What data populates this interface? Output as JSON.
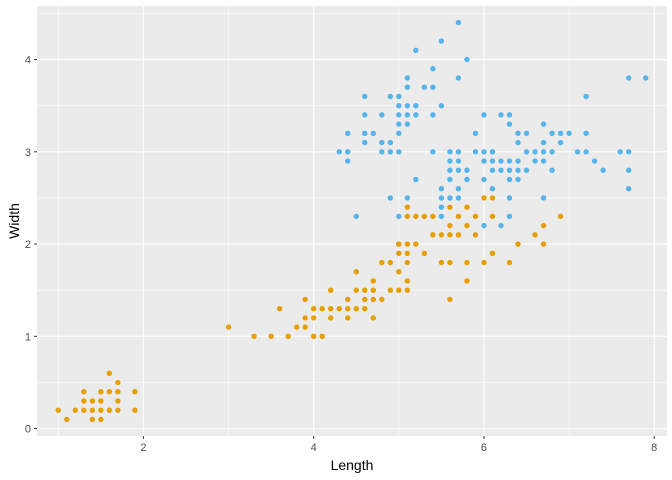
{
  "chart_data": {
    "type": "scatter",
    "xlabel": "Length",
    "ylabel": "Width",
    "xlim": [
      0.75,
      8.15
    ],
    "ylim": [
      -0.08,
      4.58
    ],
    "x_ticks": [
      2,
      4,
      6,
      8
    ],
    "y_ticks": [
      0,
      1,
      2,
      3,
      4
    ],
    "x_tick_labels": [
      "2",
      "4",
      "6",
      "8"
    ],
    "y_tick_labels": [
      "0",
      "1",
      "2",
      "3",
      "4"
    ],
    "grid": true,
    "legend": "none",
    "colors": {
      "panel": "#EBEBEB",
      "grid": "#FFFFFF",
      "blue": "#56B4E9",
      "orange": "#E69F00"
    },
    "series": [
      {
        "color": "#56B4E9",
        "points": [
          [
            4.4,
            3.0
          ],
          [
            4.4,
            2.9
          ],
          [
            4.4,
            3.2
          ],
          [
            4.3,
            3.0
          ],
          [
            4.5,
            2.3
          ],
          [
            4.6,
            3.1
          ],
          [
            4.6,
            3.4
          ],
          [
            4.6,
            3.6
          ],
          [
            4.6,
            3.2
          ],
          [
            4.7,
            3.2
          ],
          [
            4.8,
            3.4
          ],
          [
            4.8,
            3.0
          ],
          [
            4.8,
            3.1
          ],
          [
            4.9,
            3.0
          ],
          [
            4.9,
            3.1
          ],
          [
            4.9,
            3.6
          ],
          [
            4.9,
            2.5
          ],
          [
            5.0,
            3.6
          ],
          [
            5.0,
            3.4
          ],
          [
            5.0,
            3.0
          ],
          [
            5.0,
            3.3
          ],
          [
            5.0,
            3.2
          ],
          [
            5.0,
            3.5
          ],
          [
            5.0,
            2.0
          ],
          [
            5.0,
            2.3
          ],
          [
            5.1,
            3.5
          ],
          [
            5.1,
            3.8
          ],
          [
            5.1,
            3.7
          ],
          [
            5.1,
            3.3
          ],
          [
            5.1,
            3.4
          ],
          [
            5.1,
            2.5
          ],
          [
            5.2,
            3.5
          ],
          [
            5.2,
            3.4
          ],
          [
            5.2,
            4.1
          ],
          [
            5.2,
            2.7
          ],
          [
            5.3,
            3.7
          ],
          [
            5.4,
            3.9
          ],
          [
            5.4,
            3.7
          ],
          [
            5.4,
            3.4
          ],
          [
            5.4,
            3.0
          ],
          [
            5.5,
            4.2
          ],
          [
            5.5,
            3.5
          ],
          [
            5.5,
            2.3
          ],
          [
            5.5,
            2.4
          ],
          [
            5.5,
            2.5
          ],
          [
            5.5,
            2.6
          ],
          [
            5.6,
            3.0
          ],
          [
            5.6,
            2.9
          ],
          [
            5.6,
            2.5
          ],
          [
            5.6,
            2.7
          ],
          [
            5.6,
            2.8
          ],
          [
            5.7,
            4.4
          ],
          [
            5.7,
            3.8
          ],
          [
            5.7,
            2.8
          ],
          [
            5.7,
            2.6
          ],
          [
            5.7,
            3.0
          ],
          [
            5.7,
            2.9
          ],
          [
            5.7,
            2.5
          ],
          [
            5.8,
            4.0
          ],
          [
            5.8,
            2.7
          ],
          [
            5.8,
            2.8
          ],
          [
            5.9,
            3.0
          ],
          [
            5.9,
            3.2
          ],
          [
            6.0,
            2.2
          ],
          [
            6.0,
            2.9
          ],
          [
            6.0,
            3.4
          ],
          [
            6.0,
            2.7
          ],
          [
            6.0,
            3.0
          ],
          [
            6.1,
            2.8
          ],
          [
            6.1,
            3.0
          ],
          [
            6.1,
            2.6
          ],
          [
            6.1,
            2.9
          ],
          [
            6.2,
            2.2
          ],
          [
            6.2,
            2.9
          ],
          [
            6.2,
            3.4
          ],
          [
            6.2,
            2.8
          ],
          [
            6.3,
            3.3
          ],
          [
            6.3,
            2.5
          ],
          [
            6.3,
            2.3
          ],
          [
            6.3,
            2.9
          ],
          [
            6.3,
            2.8
          ],
          [
            6.3,
            3.4
          ],
          [
            6.3,
            2.7
          ],
          [
            6.4,
            3.2
          ],
          [
            6.4,
            2.9
          ],
          [
            6.4,
            2.7
          ],
          [
            6.4,
            2.8
          ],
          [
            6.4,
            3.1
          ],
          [
            6.5,
            2.8
          ],
          [
            6.5,
            3.0
          ],
          [
            6.5,
            3.2
          ],
          [
            6.6,
            2.9
          ],
          [
            6.6,
            3.0
          ],
          [
            6.7,
            3.1
          ],
          [
            6.7,
            3.0
          ],
          [
            6.7,
            2.5
          ],
          [
            6.7,
            3.3
          ],
          [
            6.7,
            2.9
          ],
          [
            6.8,
            2.8
          ],
          [
            6.8,
            3.0
          ],
          [
            6.8,
            3.2
          ],
          [
            6.9,
            3.1
          ],
          [
            6.9,
            3.2
          ],
          [
            7.0,
            3.2
          ],
          [
            7.1,
            3.0
          ],
          [
            7.2,
            3.6
          ],
          [
            7.2,
            3.2
          ],
          [
            7.2,
            3.0
          ],
          [
            7.3,
            2.9
          ],
          [
            7.4,
            2.8
          ],
          [
            7.6,
            3.0
          ],
          [
            7.7,
            3.8
          ],
          [
            7.7,
            2.6
          ],
          [
            7.7,
            2.8
          ],
          [
            7.7,
            3.0
          ],
          [
            7.9,
            3.8
          ]
        ]
      },
      {
        "color": "#E69F00",
        "points": [
          [
            1.0,
            0.2
          ],
          [
            1.1,
            0.1
          ],
          [
            1.2,
            0.2
          ],
          [
            1.3,
            0.2
          ],
          [
            1.3,
            0.3
          ],
          [
            1.3,
            0.4
          ],
          [
            1.4,
            0.2
          ],
          [
            1.4,
            0.1
          ],
          [
            1.4,
            0.3
          ],
          [
            1.5,
            0.2
          ],
          [
            1.5,
            0.1
          ],
          [
            1.5,
            0.4
          ],
          [
            1.5,
            0.3
          ],
          [
            1.6,
            0.2
          ],
          [
            1.6,
            0.6
          ],
          [
            1.6,
            0.4
          ],
          [
            1.7,
            0.2
          ],
          [
            1.7,
            0.4
          ],
          [
            1.7,
            0.5
          ],
          [
            1.7,
            0.3
          ],
          [
            1.9,
            0.2
          ],
          [
            1.9,
            0.4
          ],
          [
            3.0,
            1.1
          ],
          [
            3.3,
            1.0
          ],
          [
            3.5,
            1.0
          ],
          [
            3.6,
            1.3
          ],
          [
            3.7,
            1.0
          ],
          [
            3.8,
            1.1
          ],
          [
            3.9,
            1.1
          ],
          [
            3.9,
            1.2
          ],
          [
            3.9,
            1.4
          ],
          [
            4.0,
            1.0
          ],
          [
            4.0,
            1.3
          ],
          [
            4.0,
            1.2
          ],
          [
            4.1,
            1.0
          ],
          [
            4.1,
            1.3
          ],
          [
            4.2,
            1.3
          ],
          [
            4.2,
            1.2
          ],
          [
            4.2,
            1.5
          ],
          [
            4.3,
            1.3
          ],
          [
            4.4,
            1.4
          ],
          [
            4.4,
            1.3
          ],
          [
            4.4,
            1.2
          ],
          [
            4.5,
            1.5
          ],
          [
            4.5,
            1.3
          ],
          [
            4.5,
            1.7
          ],
          [
            4.6,
            1.5
          ],
          [
            4.6,
            1.4
          ],
          [
            4.6,
            1.3
          ],
          [
            4.7,
            1.4
          ],
          [
            4.7,
            1.6
          ],
          [
            4.7,
            1.2
          ],
          [
            4.7,
            1.5
          ],
          [
            4.8,
            1.8
          ],
          [
            4.8,
            1.4
          ],
          [
            4.9,
            1.5
          ],
          [
            4.9,
            1.8
          ],
          [
            5.0,
            1.7
          ],
          [
            5.0,
            1.5
          ],
          [
            5.0,
            2.0
          ],
          [
            5.0,
            1.9
          ],
          [
            5.1,
            1.6
          ],
          [
            5.1,
            1.9
          ],
          [
            5.1,
            2.0
          ],
          [
            5.1,
            1.8
          ],
          [
            5.1,
            1.5
          ],
          [
            5.1,
            2.3
          ],
          [
            5.1,
            2.4
          ],
          [
            5.2,
            2.0
          ],
          [
            5.2,
            2.3
          ],
          [
            5.3,
            1.9
          ],
          [
            5.3,
            2.3
          ],
          [
            5.4,
            2.1
          ],
          [
            5.4,
            2.3
          ],
          [
            5.5,
            2.1
          ],
          [
            5.5,
            1.8
          ],
          [
            5.6,
            2.1
          ],
          [
            5.6,
            1.8
          ],
          [
            5.6,
            2.2
          ],
          [
            5.6,
            2.4
          ],
          [
            5.6,
            1.4
          ],
          [
            5.7,
            2.1
          ],
          [
            5.7,
            2.3
          ],
          [
            5.8,
            2.2
          ],
          [
            5.8,
            1.6
          ],
          [
            5.8,
            2.4
          ],
          [
            5.8,
            1.8
          ],
          [
            5.9,
            2.3
          ],
          [
            5.9,
            2.1
          ],
          [
            6.0,
            2.5
          ],
          [
            6.0,
            1.8
          ],
          [
            6.1,
            2.5
          ],
          [
            6.1,
            2.3
          ],
          [
            6.1,
            1.9
          ],
          [
            6.3,
            1.8
          ],
          [
            6.4,
            2.0
          ],
          [
            6.6,
            2.1
          ],
          [
            6.7,
            2.0
          ],
          [
            6.7,
            2.2
          ],
          [
            6.9,
            2.3
          ]
        ]
      }
    ]
  }
}
